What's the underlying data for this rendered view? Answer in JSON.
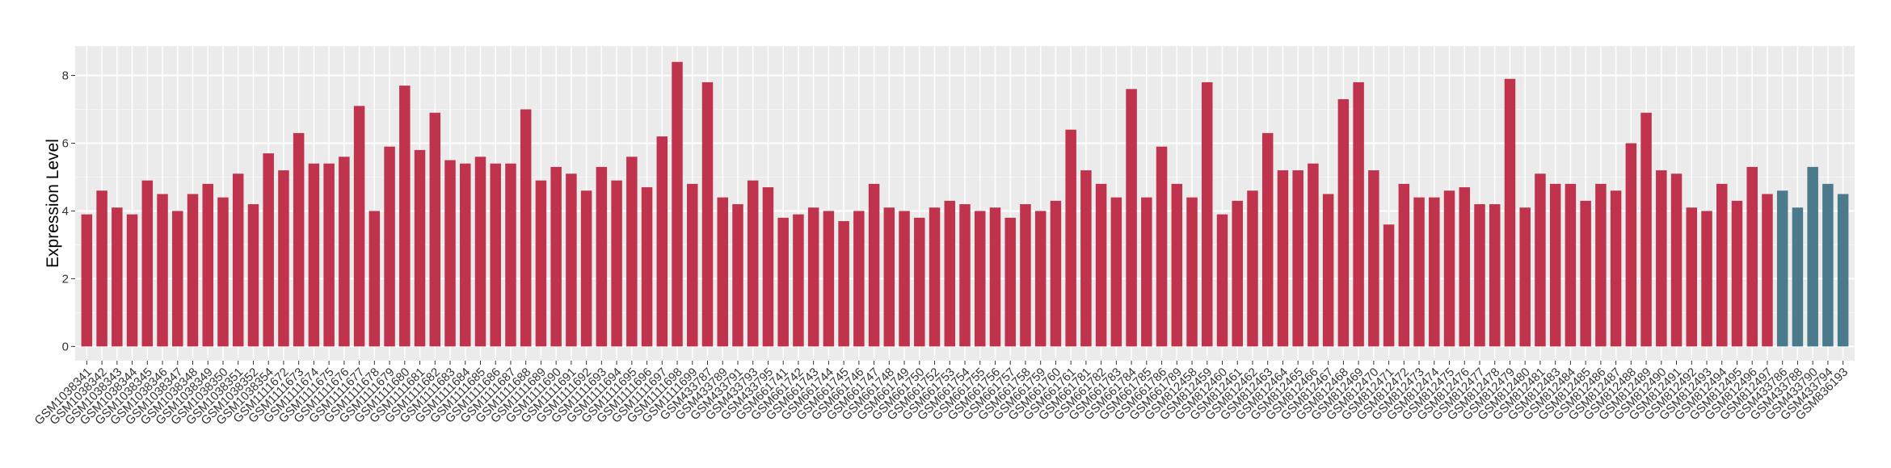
{
  "chart_data": {
    "type": "bar",
    "y_label": "Expression Level",
    "categories": [
      "GSM1038341",
      "GSM1038342",
      "GSM1038343",
      "GSM1038344",
      "GSM1038345",
      "GSM1038346",
      "GSM1038347",
      "GSM1038348",
      "GSM1038349",
      "GSM1038350",
      "GSM1038351",
      "GSM1038352",
      "GSM1038354",
      "GSM1111672",
      "GSM1111673",
      "GSM1111674",
      "GSM1111675",
      "GSM1111676",
      "GSM1111677",
      "GSM1111678",
      "GSM1111679",
      "GSM1111680",
      "GSM1111681",
      "GSM1111682",
      "GSM1111683",
      "GSM1111684",
      "GSM1111685",
      "GSM1111686",
      "GSM1111687",
      "GSM1111688",
      "GSM1111689",
      "GSM1111690",
      "GSM1111691",
      "GSM1111692",
      "GSM1111693",
      "GSM1111694",
      "GSM1111695",
      "GSM1111696",
      "GSM1111697",
      "GSM1111698",
      "GSM1111699",
      "GSM433787",
      "GSM433789",
      "GSM433791",
      "GSM433793",
      "GSM433795",
      "GSM661741",
      "GSM661742",
      "GSM661743",
      "GSM661744",
      "GSM661745",
      "GSM661746",
      "GSM661747",
      "GSM661748",
      "GSM661749",
      "GSM661750",
      "GSM661752",
      "GSM661753",
      "GSM661754",
      "GSM661755",
      "GSM661756",
      "GSM661757",
      "GSM661758",
      "GSM661759",
      "GSM661760",
      "GSM661761",
      "GSM661781",
      "GSM661782",
      "GSM661783",
      "GSM661784",
      "GSM661785",
      "GSM661786",
      "GSM661789",
      "GSM812458",
      "GSM812459",
      "GSM812460",
      "GSM812461",
      "GSM812462",
      "GSM812463",
      "GSM812464",
      "GSM812465",
      "GSM812466",
      "GSM812467",
      "GSM812468",
      "GSM812469",
      "GSM812470",
      "GSM812471",
      "GSM812472",
      "GSM812473",
      "GSM812474",
      "GSM812475",
      "GSM812476",
      "GSM812477",
      "GSM812478",
      "GSM812479",
      "GSM812480",
      "GSM812481",
      "GSM812483",
      "GSM812484",
      "GSM812485",
      "GSM812486",
      "GSM812487",
      "GSM812488",
      "GSM812489",
      "GSM812490",
      "GSM812491",
      "GSM812492",
      "GSM812493",
      "GSM812494",
      "GSM812495",
      "GSM812496",
      "GSM812497",
      "GSM433786",
      "GSM433788",
      "GSM433790",
      "GSM433794",
      "GSM836193"
    ],
    "values": [
      3.9,
      4.6,
      4.1,
      3.9,
      4.9,
      4.5,
      4.0,
      4.5,
      4.8,
      4.4,
      5.1,
      4.2,
      5.7,
      5.2,
      6.3,
      5.4,
      5.4,
      5.6,
      7.1,
      4.0,
      5.9,
      7.7,
      5.8,
      6.9,
      5.5,
      5.4,
      5.6,
      5.4,
      5.4,
      7.0,
      4.9,
      5.3,
      5.1,
      4.6,
      5.3,
      4.9,
      5.6,
      4.7,
      6.2,
      8.4,
      4.8,
      7.8,
      4.4,
      4.2,
      4.9,
      4.7,
      3.8,
      3.9,
      4.1,
      4.0,
      3.7,
      4.0,
      4.8,
      4.1,
      4.0,
      3.8,
      4.1,
      4.3,
      4.2,
      4.0,
      4.1,
      3.8,
      4.2,
      4.0,
      4.3,
      6.4,
      5.2,
      4.8,
      4.4,
      7.6,
      4.4,
      5.9,
      4.8,
      4.4,
      7.8,
      3.9,
      4.3,
      4.6,
      6.3,
      5.2,
      5.2,
      5.4,
      4.5,
      7.3,
      7.8,
      5.2,
      3.6,
      4.8,
      4.4,
      4.4,
      4.6,
      4.7,
      4.2,
      4.2,
      7.9,
      4.1,
      5.1,
      4.8,
      4.8,
      4.3,
      4.8,
      4.6,
      6.0,
      6.9,
      5.2,
      5.1,
      4.1,
      4.0,
      4.8,
      4.3,
      5.3,
      4.5,
      4.6,
      4.1,
      5.3,
      4.8,
      4.5
    ],
    "colors": [
      "#c0334d",
      "#c0334d",
      "#c0334d",
      "#c0334d",
      "#c0334d",
      "#c0334d",
      "#c0334d",
      "#c0334d",
      "#c0334d",
      "#c0334d",
      "#c0334d",
      "#c0334d",
      "#c0334d",
      "#c0334d",
      "#c0334d",
      "#c0334d",
      "#c0334d",
      "#c0334d",
      "#c0334d",
      "#c0334d",
      "#c0334d",
      "#c0334d",
      "#c0334d",
      "#c0334d",
      "#c0334d",
      "#c0334d",
      "#c0334d",
      "#c0334d",
      "#c0334d",
      "#c0334d",
      "#c0334d",
      "#c0334d",
      "#c0334d",
      "#c0334d",
      "#c0334d",
      "#c0334d",
      "#c0334d",
      "#c0334d",
      "#c0334d",
      "#c0334d",
      "#c0334d",
      "#c0334d",
      "#c0334d",
      "#c0334d",
      "#c0334d",
      "#c0334d",
      "#c0334d",
      "#c0334d",
      "#c0334d",
      "#c0334d",
      "#c0334d",
      "#c0334d",
      "#c0334d",
      "#c0334d",
      "#c0334d",
      "#c0334d",
      "#c0334d",
      "#c0334d",
      "#c0334d",
      "#c0334d",
      "#c0334d",
      "#c0334d",
      "#c0334d",
      "#c0334d",
      "#c0334d",
      "#c0334d",
      "#c0334d",
      "#c0334d",
      "#c0334d",
      "#c0334d",
      "#c0334d",
      "#c0334d",
      "#c0334d",
      "#c0334d",
      "#c0334d",
      "#c0334d",
      "#c0334d",
      "#c0334d",
      "#c0334d",
      "#c0334d",
      "#c0334d",
      "#c0334d",
      "#c0334d",
      "#c0334d",
      "#c0334d",
      "#c0334d",
      "#c0334d",
      "#c0334d",
      "#c0334d",
      "#c0334d",
      "#c0334d",
      "#c0334d",
      "#c0334d",
      "#c0334d",
      "#c0334d",
      "#c0334d",
      "#c0334d",
      "#c0334d",
      "#c0334d",
      "#c0334d",
      "#c0334d",
      "#c0334d",
      "#c0334d",
      "#c0334d",
      "#c0334d",
      "#c0334d",
      "#c0334d",
      "#c0334d",
      "#c0334d",
      "#c0334d",
      "#c0334d",
      "#c0334d",
      "#4a7a8c",
      "#4a7a8c",
      "#4a7a8c",
      "#4a7a8c",
      "#4a7a8c"
    ],
    "ylim": [
      -0.42,
      8.87
    ],
    "yticks": [
      0,
      2,
      4,
      6,
      8
    ],
    "grid": true
  }
}
